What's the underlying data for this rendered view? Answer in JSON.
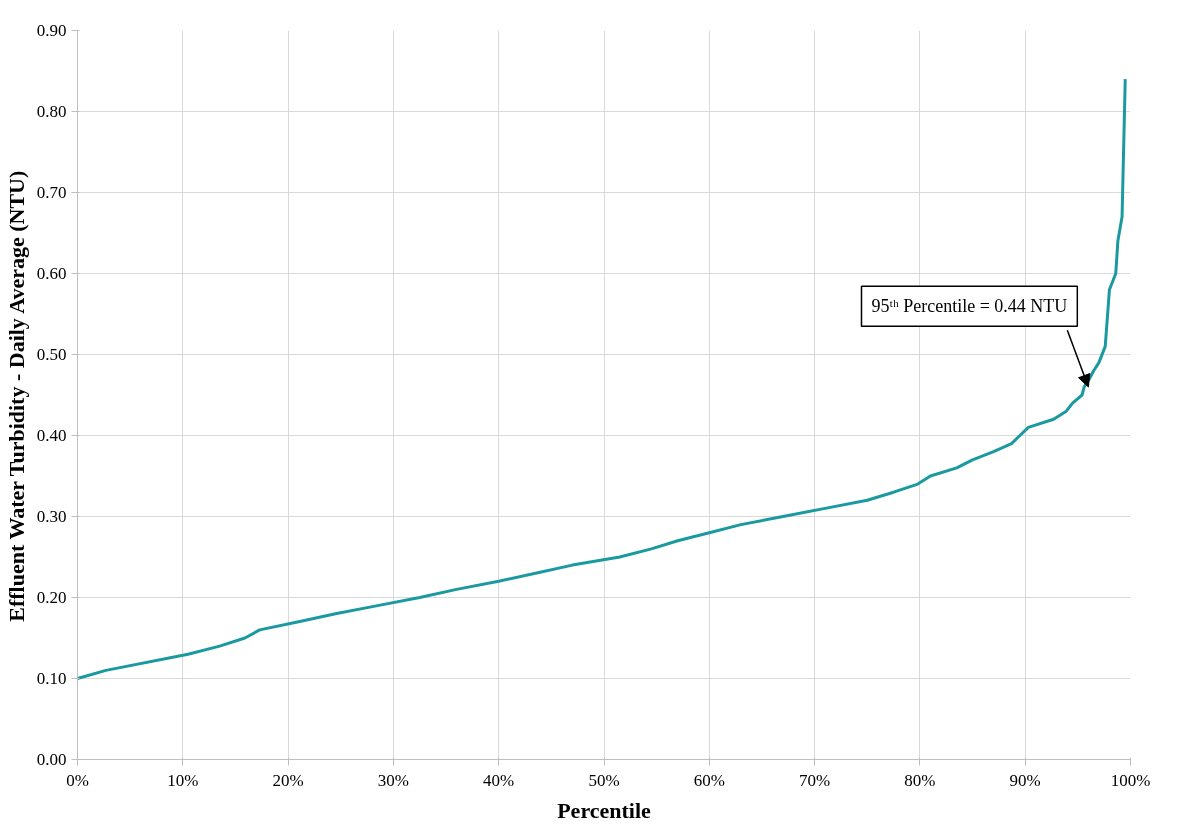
{
  "chart_data": {
    "type": "line",
    "xlabel": "Percentile",
    "ylabel": "Effluent Water Turbidity - Daily Average (NTU)",
    "x": [
      0,
      2.7,
      10.5,
      13.5,
      15.9,
      17.3,
      21,
      24.5,
      28.5,
      32.5,
      36,
      40,
      43.5,
      47,
      51.5,
      54.5,
      57,
      60,
      63,
      67,
      71,
      75,
      77.5,
      79.8,
      81,
      83.5,
      85,
      87,
      88.7,
      90.3,
      92.7,
      93.9,
      94.5,
      95.4,
      95.6,
      96.1,
      96.5,
      97,
      97.6,
      98,
      98.6,
      98.8,
      99.2,
      99.5
    ],
    "series": [
      {
        "color": "#1a9aa0",
        "values": [
          0.1,
          0.11,
          0.13,
          0.14,
          0.15,
          0.16,
          0.17,
          0.18,
          0.19,
          0.2,
          0.21,
          0.22,
          0.23,
          0.24,
          0.25,
          0.26,
          0.27,
          0.28,
          0.29,
          0.3,
          0.31,
          0.32,
          0.33,
          0.34,
          0.35,
          0.36,
          0.37,
          0.38,
          0.39,
          0.41,
          0.42,
          0.43,
          0.44,
          0.45,
          0.46,
          0.47,
          0.48,
          0.49,
          0.51,
          0.58,
          0.6,
          0.64,
          0.67,
          0.84
        ]
      }
    ],
    "xlim": [
      0,
      100
    ],
    "ylim": [
      0,
      0.9
    ],
    "xticks": [
      {
        "value": 0,
        "label": "0%"
      },
      {
        "value": 10,
        "label": "10%"
      },
      {
        "value": 20,
        "label": "20%"
      },
      {
        "value": 30,
        "label": "30%"
      },
      {
        "value": 40,
        "label": "40%"
      },
      {
        "value": 50,
        "label": "50%"
      },
      {
        "value": 60,
        "label": "60%"
      },
      {
        "value": 70,
        "label": "70%"
      },
      {
        "value": 80,
        "label": "80%"
      },
      {
        "value": 90,
        "label": "90%"
      },
      {
        "value": 100,
        "label": "100%"
      }
    ],
    "yticks": [
      {
        "value": 0,
        "label": "0.00"
      },
      {
        "value": 0.1,
        "label": "0.10"
      },
      {
        "value": 0.2,
        "label": "0.20"
      },
      {
        "value": 0.3,
        "label": "0.30"
      },
      {
        "value": 0.4,
        "label": "0.40"
      },
      {
        "value": 0.5,
        "label": "0.50"
      },
      {
        "value": 0.6,
        "label": "0.60"
      },
      {
        "value": 0.7,
        "label": "0.70"
      },
      {
        "value": 0.8,
        "label": "0.80"
      },
      {
        "value": 0.9,
        "label": "0.90"
      }
    ],
    "annotations": [
      {
        "text": "95ᵗʰ Percentile = 0.44 NTU",
        "x": 96,
        "y": 0.46
      }
    ],
    "grid": true,
    "marker": "none",
    "line_style": "solid"
  }
}
